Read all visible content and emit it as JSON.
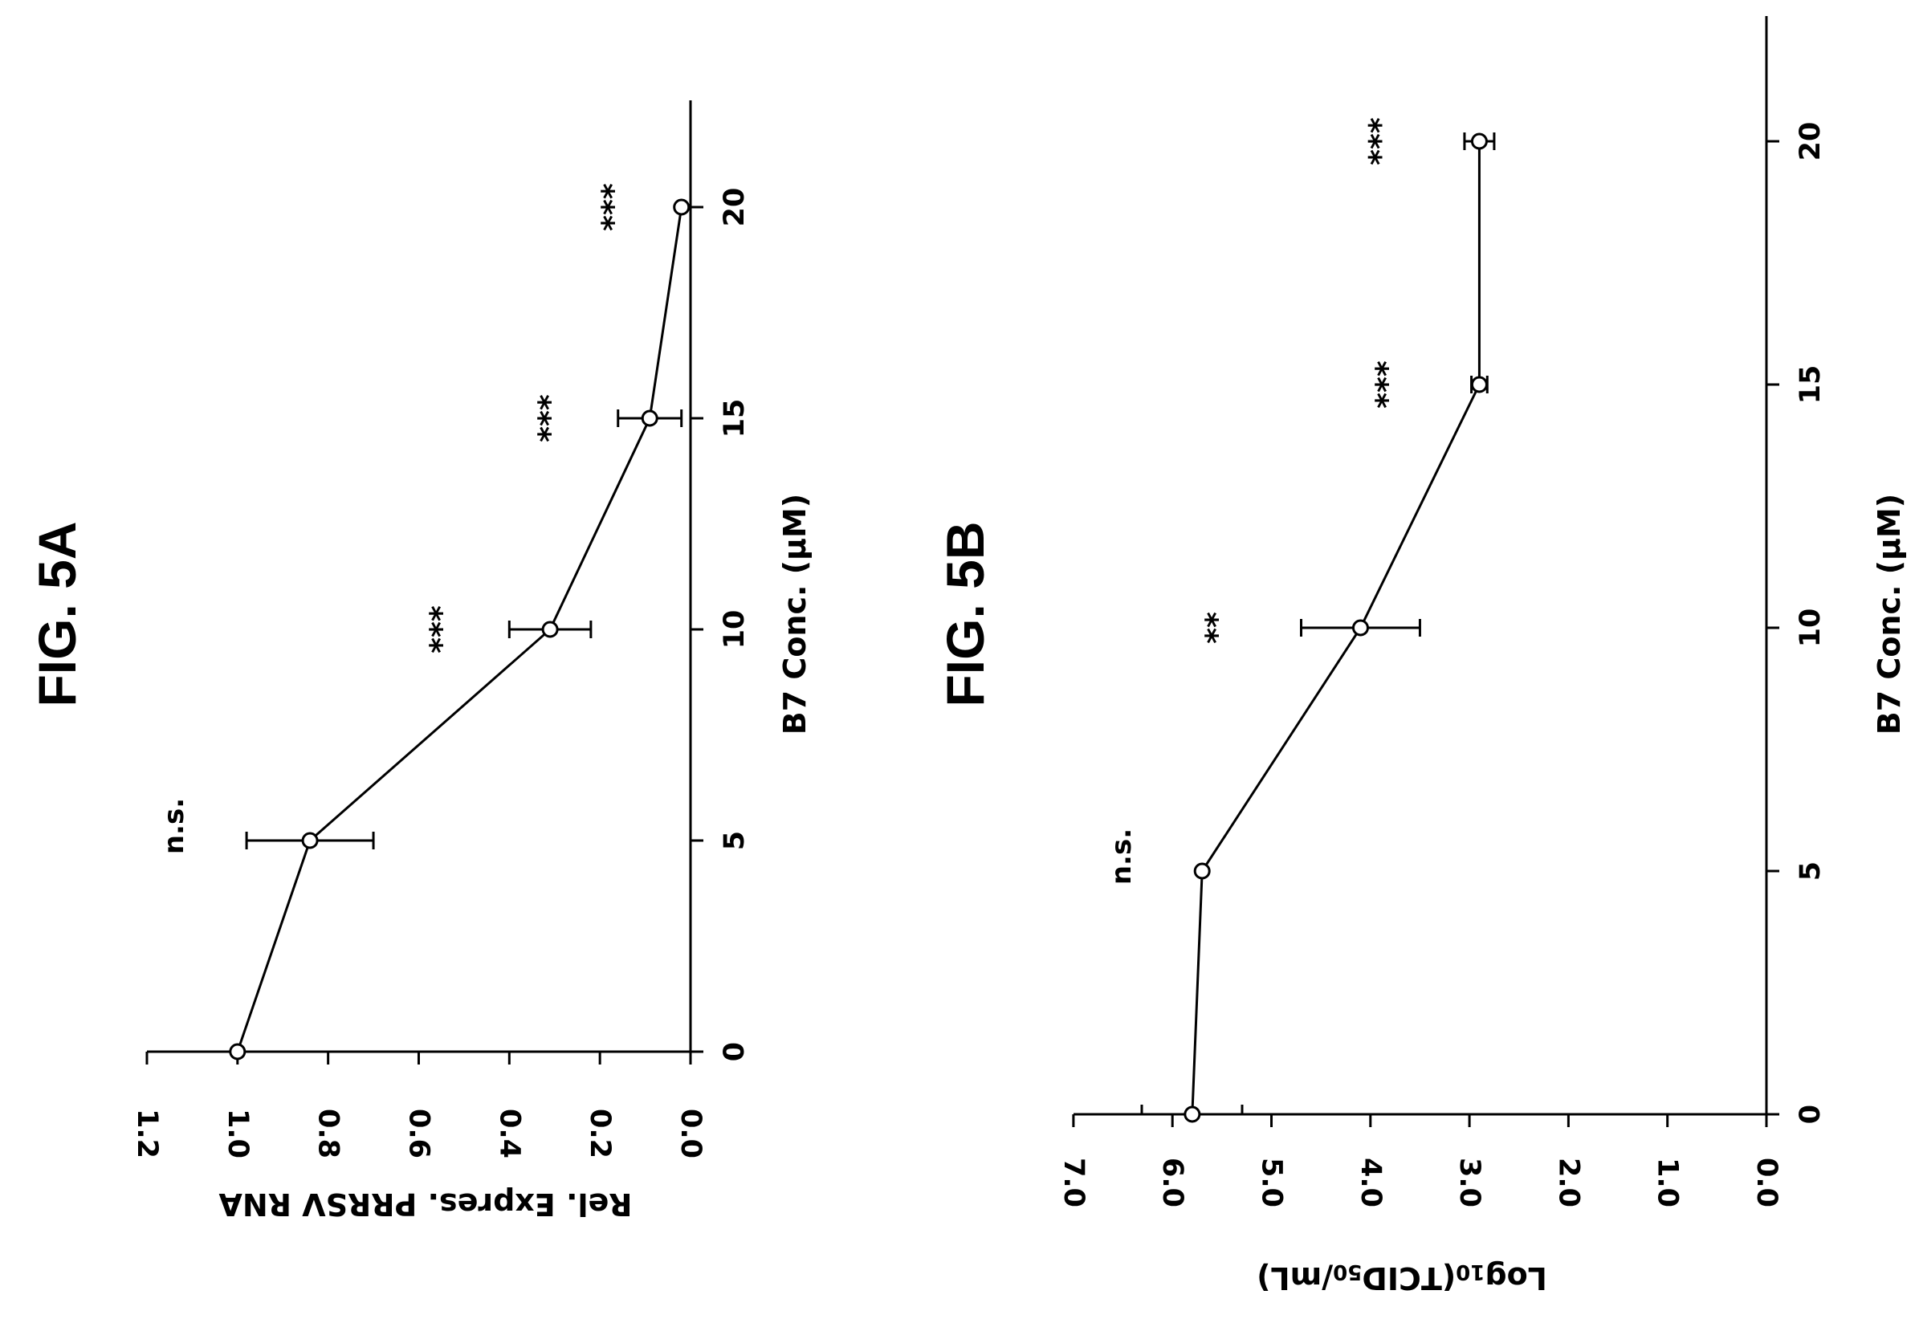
{
  "chart_data": [
    {
      "type": "line",
      "figure_label": "FIG. 5A",
      "xlabel": "B7 Conc. (μM)",
      "ylabel": "Rel. Expres. PRRSV RNA",
      "xlim": [
        0,
        22.3
      ],
      "ylim": [
        0,
        1.2
      ],
      "x_ticks": [
        "0",
        "5",
        "10",
        "15",
        "20"
      ],
      "y_ticks": [
        "0.0",
        "0.2",
        "0.4",
        "0.6",
        "0.8",
        "1.0",
        "1.2"
      ],
      "series": [
        {
          "x": [
            0,
            5,
            10,
            15,
            20
          ],
          "y": [
            1.0,
            0.84,
            0.31,
            0.09,
            0.02
          ],
          "y_err": [
            0,
            0.14,
            0.09,
            0.07,
            0
          ],
          "significance": [
            "",
            "n.s.",
            "***",
            "***",
            "***"
          ]
        }
      ]
    },
    {
      "type": "line",
      "figure_label": "FIG. 5B",
      "xlabel": "B7 Conc. (μM)",
      "ylabel_main": "Log",
      "ylabel_sub1": "10",
      "ylabel_mid": "(TCID",
      "ylabel_sub2": "50",
      "ylabel_end": "/mL)",
      "xlim": [
        0,
        22.5
      ],
      "ylim": [
        0,
        7.0
      ],
      "x_ticks": [
        "0",
        "5",
        "10",
        "15",
        "20"
      ],
      "y_ticks": [
        "0.0",
        "1.0",
        "2.0",
        "3.0",
        "4.0",
        "5.0",
        "6.0",
        "7.0"
      ],
      "series": [
        {
          "x": [
            0,
            5,
            10,
            15,
            20
          ],
          "y": [
            5.8,
            5.7,
            4.1,
            2.9,
            2.9
          ],
          "y_err": [
            0,
            0,
            0.6,
            0.08,
            0.15
          ],
          "significance": [
            "",
            "n.s.",
            "**",
            "***",
            "***"
          ]
        }
      ]
    }
  ]
}
